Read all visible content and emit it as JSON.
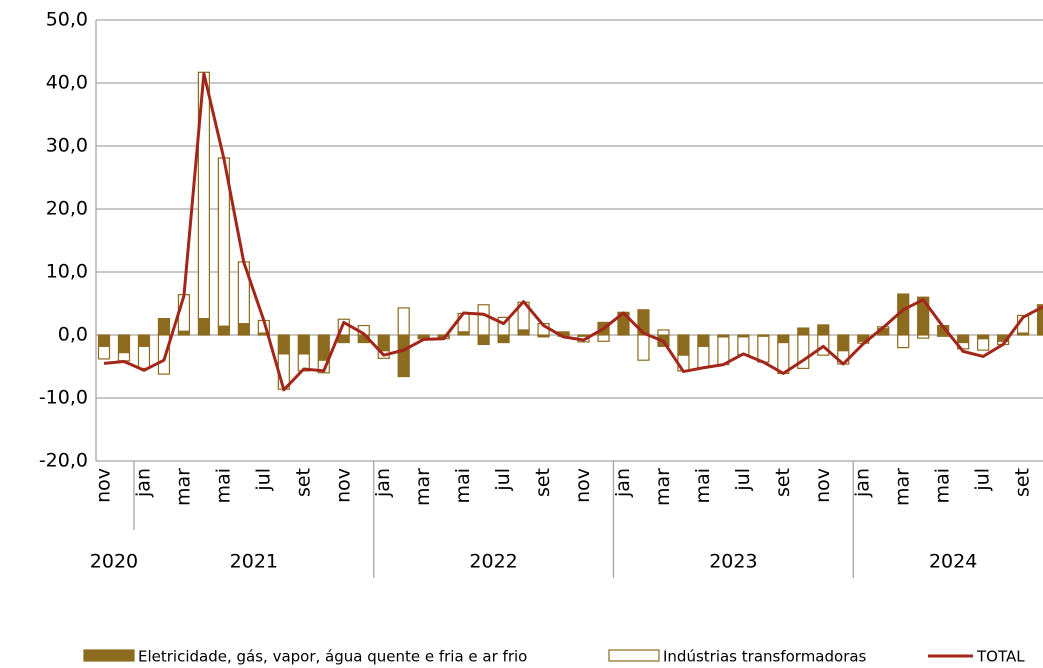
{
  "chart_data": {
    "type": "bar",
    "categories": [
      "nov",
      null,
      "jan",
      null,
      "mar",
      null,
      "mai",
      null,
      "jul",
      null,
      "set",
      null,
      "nov",
      null,
      "jan",
      null,
      "mar",
      null,
      "mai",
      null,
      "jul",
      null,
      "set",
      null,
      "nov",
      null,
      "jan",
      null,
      "mar",
      null,
      "mai",
      null,
      "jul",
      null,
      "set",
      null,
      "nov",
      null,
      "jan",
      null,
      "mar",
      null,
      "mai",
      null,
      "jul",
      null,
      "set",
      null
    ],
    "year_groups": [
      {
        "name": "2020",
        "count": 2
      },
      {
        "name": "2021",
        "count": 12
      },
      {
        "name": "2022",
        "count": 12
      },
      {
        "name": "2023",
        "count": 12
      },
      {
        "name": "2024",
        "count": 10
      }
    ],
    "series": [
      {
        "name": "Eletricidade, gás, vapor, água quente e fria e ar frio",
        "type": "bar",
        "color": "#8c6a1e",
        "fill": "#8c6a1e",
        "values": [
          -1.8,
          -2.8,
          -1.8,
          2.6,
          0.6,
          2.6,
          1.4,
          1.8,
          0.3,
          -3.0,
          -3.0,
          -4.0,
          -1.2,
          -1.2,
          -2.5,
          -6.6,
          -0.4,
          -0.3,
          0.5,
          -1.5,
          -1.2,
          0.8,
          -0.3,
          0.5,
          -0.2,
          2.0,
          3.5,
          4.0,
          -1.8,
          -3.2,
          -1.8,
          -0.3,
          -0.3,
          -0.2,
          -1.2,
          1.1,
          1.6,
          -2.5,
          -1.0,
          1.0,
          6.5,
          6.0,
          1.5,
          -1.2,
          -0.6,
          -1.0,
          0.3,
          4.8
        ]
      },
      {
        "name": "Indústrias transformadoras",
        "type": "bar",
        "color": "#8c6a1e",
        "fill": "#ffffff",
        "values": [
          -2.0,
          -1.3,
          -3.5,
          -6.2,
          5.8,
          39.1,
          26.7,
          9.8,
          2.0,
          -5.6,
          -2.7,
          -2.0,
          2.5,
          1.5,
          -1.2,
          4.3,
          -0.2,
          -0.3,
          2.9,
          4.8,
          2.8,
          4.4,
          1.8,
          -0.2,
          -0.9,
          -1.0,
          0.1,
          -4.0,
          0.8,
          -2.5,
          -3.4,
          -4.4,
          -2.8,
          -4.1,
          -4.9,
          -5.3,
          -3.2,
          -2.1,
          -0.3,
          0.3,
          -2.0,
          -0.5,
          -0.2,
          -1.0,
          -1.8,
          -0.5,
          2.8,
          0.0
        ]
      },
      {
        "name": "TOTAL",
        "type": "line",
        "color": "#a3261a",
        "values": [
          -4.5,
          -4.2,
          -5.6,
          -4.0,
          6.2,
          41.5,
          28.0,
          11.5,
          2.3,
          -8.7,
          -5.4,
          -5.7,
          2.0,
          0.2,
          -3.2,
          -2.4,
          -0.7,
          -0.6,
          3.5,
          3.3,
          1.8,
          5.3,
          1.5,
          -0.3,
          -0.8,
          1.0,
          3.5,
          0.3,
          -1.0,
          -5.8,
          -5.2,
          -4.7,
          -3.0,
          -4.3,
          -6.1,
          -4.0,
          -1.8,
          -4.6,
          -1.4,
          1.2,
          4.0,
          5.6,
          1.3,
          -2.6,
          -3.4,
          -1.5,
          2.8,
          4.5
        ]
      }
    ],
    "ylim": [
      -20,
      50
    ],
    "yticks": [
      {
        "value": -20,
        "label": "-20,0"
      },
      {
        "value": -10,
        "label": "-10,0"
      },
      {
        "value": 0,
        "label": "0,0"
      },
      {
        "value": 10,
        "label": "10,0"
      },
      {
        "value": 20,
        "label": "20,0"
      },
      {
        "value": 30,
        "label": "30,0"
      },
      {
        "value": 40,
        "label": "40,0"
      },
      {
        "value": 50,
        "label": "50,0"
      }
    ],
    "grid": true,
    "legend": "bottom"
  }
}
